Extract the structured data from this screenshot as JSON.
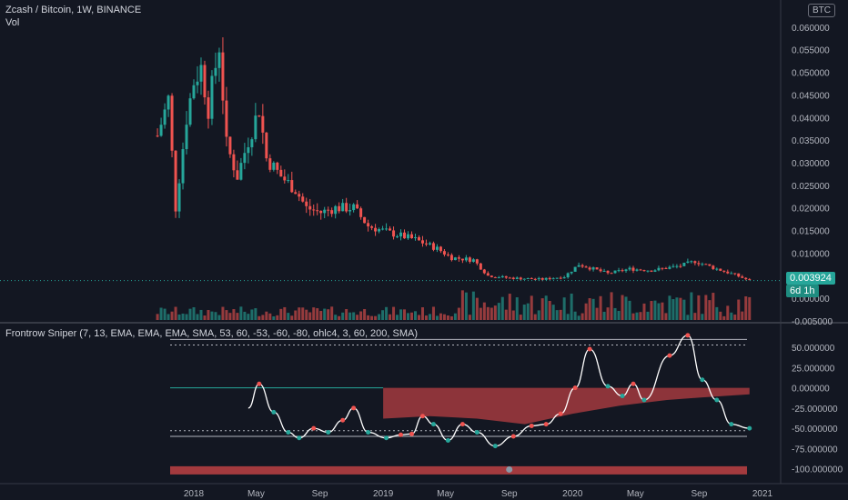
{
  "header": {
    "symbol_line": "Zcash / Bitcoin, 1W, BINANCE",
    "vol_label": "Vol",
    "currency_badge": "BTC",
    "indicator_line": "Frontrow Sniper (7, 13, EMA, EMA, EMA, SMA, 53, 60, -53, -60, -80, ohlc4, 3, 60, 200, SMA)"
  },
  "price_tags": {
    "last_price": "0.003924",
    "countdown": "6d 1h"
  },
  "colors": {
    "up": "#26a69a",
    "down": "#ef5350",
    "background": "#131722",
    "grid_text": "#b2b5be",
    "fill_red": "#a33a3e",
    "osc_line": "#ffffff"
  },
  "chart_data": [
    {
      "type": "candlestick",
      "title": "Zcash / Bitcoin, 1W, BINANCE",
      "ylim": [
        -0.005,
        0.065
      ],
      "y_ticks": [
        "0.060000",
        "0.055000",
        "0.050000",
        "0.045000",
        "0.040000",
        "0.035000",
        "0.030000",
        "0.025000",
        "0.020000",
        "0.015000",
        "0.010000",
        "0.005000",
        "0.000000",
        "-0.005000"
      ],
      "x_ticks": [
        "2018",
        "May",
        "Sep",
        "2019",
        "May",
        "Sep",
        "2020",
        "May",
        "Sep",
        "2021"
      ],
      "x_tick_dates": [
        "2018-01-01",
        "2018-05-01",
        "2018-09-01",
        "2019-01-01",
        "2019-05-01",
        "2019-09-01",
        "2020-01-01",
        "2020-05-01",
        "2020-09-01",
        "2021-01-01"
      ],
      "price_path": [
        {
          "date": "2017-10-23",
          "close": 0.036
        },
        {
          "date": "2017-11-13",
          "close": 0.044
        },
        {
          "date": "2017-11-27",
          "close": 0.02
        },
        {
          "date": "2017-12-18",
          "close": 0.04
        },
        {
          "date": "2018-01-01",
          "close": 0.048
        },
        {
          "date": "2018-01-15",
          "close": 0.051
        },
        {
          "date": "2018-01-29",
          "close": 0.042
        },
        {
          "date": "2018-02-19",
          "close": 0.056
        },
        {
          "date": "2018-03-05",
          "close": 0.034
        },
        {
          "date": "2018-03-26",
          "close": 0.027
        },
        {
          "date": "2018-04-16",
          "close": 0.035
        },
        {
          "date": "2018-05-07",
          "close": 0.042
        },
        {
          "date": "2018-05-21",
          "close": 0.031
        },
        {
          "date": "2018-06-18",
          "close": 0.027
        },
        {
          "date": "2018-07-16",
          "close": 0.024
        },
        {
          "date": "2018-08-06",
          "close": 0.02
        },
        {
          "date": "2018-09-03",
          "close": 0.019
        },
        {
          "date": "2018-10-01",
          "close": 0.02
        },
        {
          "date": "2018-11-05",
          "close": 0.02
        },
        {
          "date": "2018-12-03",
          "close": 0.016
        },
        {
          "date": "2019-01-14",
          "close": 0.0145
        },
        {
          "date": "2019-03-04",
          "close": 0.013
        },
        {
          "date": "2019-04-15",
          "close": 0.011
        },
        {
          "date": "2019-05-13",
          "close": 0.009
        },
        {
          "date": "2019-06-24",
          "close": 0.0085
        },
        {
          "date": "2019-07-22",
          "close": 0.005
        },
        {
          "date": "2019-09-02",
          "close": 0.0045
        },
        {
          "date": "2019-11-04",
          "close": 0.0042
        },
        {
          "date": "2019-12-16",
          "close": 0.0048
        },
        {
          "date": "2020-01-13",
          "close": 0.0075
        },
        {
          "date": "2020-03-09",
          "close": 0.0055
        },
        {
          "date": "2020-04-20",
          "close": 0.0065
        },
        {
          "date": "2020-06-01",
          "close": 0.0062
        },
        {
          "date": "2020-07-27",
          "close": 0.0072
        },
        {
          "date": "2020-08-24",
          "close": 0.0082
        },
        {
          "date": "2020-10-05",
          "close": 0.0065
        },
        {
          "date": "2020-11-09",
          "close": 0.0052
        },
        {
          "date": "2020-12-07",
          "close": 0.0039
        }
      ],
      "last_close": 0.003924
    },
    {
      "type": "line",
      "title": "Frontrow Sniper (7, 13, EMA, EMA, EMA, SMA, 53, 60, -53, -60, -80, ohlc4, 3, 60, 200, SMA)",
      "ylim": [
        -105,
        75
      ],
      "y_ticks": [
        "50.000000",
        "25.000000",
        "0.000000",
        "-25.000000",
        "-50.000000",
        "-75.000000",
        "-100.000000"
      ],
      "levels": [
        60,
        53,
        -53,
        -60
      ],
      "oscillator": [
        {
          "date": "2018-04-16",
          "value": -25
        },
        {
          "date": "2018-05-07",
          "value": 5
        },
        {
          "date": "2018-06-04",
          "value": -30
        },
        {
          "date": "2018-07-02",
          "value": -55
        },
        {
          "date": "2018-07-23",
          "value": -62
        },
        {
          "date": "2018-08-20",
          "value": -50
        },
        {
          "date": "2018-09-17",
          "value": -55
        },
        {
          "date": "2018-10-15",
          "value": -40
        },
        {
          "date": "2018-11-05",
          "value": -25
        },
        {
          "date": "2018-12-03",
          "value": -55
        },
        {
          "date": "2019-01-07",
          "value": -62
        },
        {
          "date": "2019-02-04",
          "value": -58
        },
        {
          "date": "2019-02-25",
          "value": -57
        },
        {
          "date": "2019-03-18",
          "value": -35
        },
        {
          "date": "2019-04-08",
          "value": -45
        },
        {
          "date": "2019-05-06",
          "value": -65
        },
        {
          "date": "2019-06-03",
          "value": -45
        },
        {
          "date": "2019-07-01",
          "value": -55
        },
        {
          "date": "2019-08-05",
          "value": -72
        },
        {
          "date": "2019-09-09",
          "value": -60
        },
        {
          "date": "2019-10-14",
          "value": -47
        },
        {
          "date": "2019-11-11",
          "value": -45
        },
        {
          "date": "2019-12-09",
          "value": -32
        },
        {
          "date": "2020-01-06",
          "value": 0
        },
        {
          "date": "2020-02-03",
          "value": 48
        },
        {
          "date": "2020-03-09",
          "value": 2
        },
        {
          "date": "2020-04-06",
          "value": -10
        },
        {
          "date": "2020-04-27",
          "value": 5
        },
        {
          "date": "2020-05-18",
          "value": -15
        },
        {
          "date": "2020-07-06",
          "value": 40
        },
        {
          "date": "2020-08-10",
          "value": 65
        },
        {
          "date": "2020-09-07",
          "value": 10
        },
        {
          "date": "2020-10-05",
          "value": -15
        },
        {
          "date": "2020-11-02",
          "value": -45
        },
        {
          "date": "2020-12-07",
          "value": -50
        }
      ],
      "baseline_fill": [
        {
          "date": "2019-01-01",
          "value": -38
        },
        {
          "date": "2019-04-01",
          "value": -35
        },
        {
          "date": "2019-07-01",
          "value": -38
        },
        {
          "date": "2019-10-01",
          "value": -45
        },
        {
          "date": "2020-01-01",
          "value": -32
        },
        {
          "date": "2020-04-01",
          "value": -22
        },
        {
          "date": "2020-07-01",
          "value": -15
        },
        {
          "date": "2020-09-01",
          "value": -12
        },
        {
          "date": "2020-12-07",
          "value": -8
        }
      ]
    }
  ]
}
